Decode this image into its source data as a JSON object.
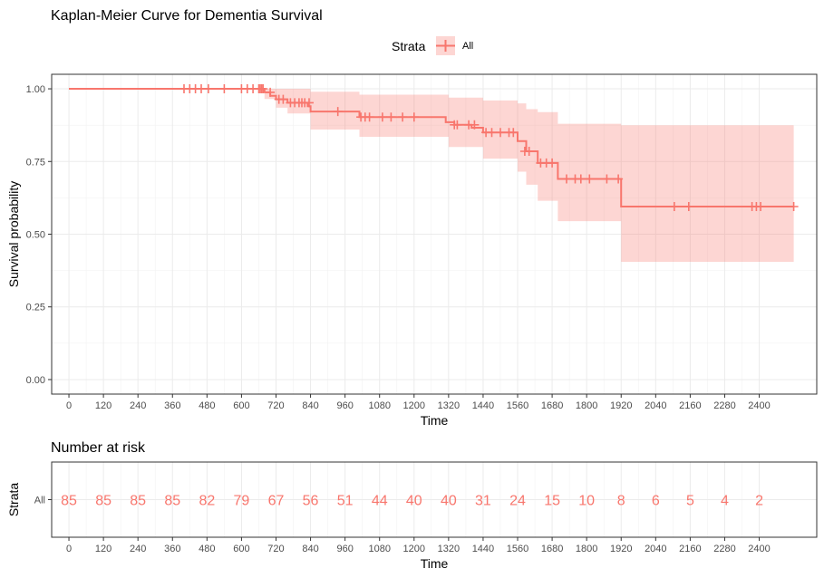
{
  "chart_data": [
    {
      "type": "line",
      "title": "Kaplan-Meier Curve for Dementia Survival",
      "xlabel": "Time",
      "ylabel": "Survival probability",
      "xlim": [
        -60,
        2600
      ],
      "ylim": [
        -0.05,
        1.05
      ],
      "x_ticks": [
        "0",
        "120",
        "240",
        "360",
        "480",
        "600",
        "720",
        "840",
        "960",
        "1080",
        "1200",
        "1320",
        "1440",
        "1560",
        "1680",
        "1800",
        "1920",
        "2040",
        "2160",
        "2280",
        "2400"
      ],
      "y_ticks": [
        "0.00",
        "0.25",
        "0.50",
        "0.75",
        "1.00"
      ],
      "grid": true,
      "legend": {
        "title": "Strata",
        "position": "top",
        "entries": [
          "All"
        ]
      },
      "color": "#F8766D",
      "band_color": "#F8766D",
      "series": [
        {
          "name": "All",
          "steps": [
            [
              0,
              1.0
            ],
            [
              680,
              0.988
            ],
            [
              700,
              0.976
            ],
            [
              720,
              0.964
            ],
            [
              760,
              0.952
            ],
            [
              830,
              0.94
            ],
            [
              840,
              0.922
            ],
            [
              1010,
              0.903
            ],
            [
              1310,
              0.885
            ],
            [
              1340,
              0.876
            ],
            [
              1400,
              0.866
            ],
            [
              1440,
              0.85
            ],
            [
              1520,
              0.85
            ],
            [
              1560,
              0.82
            ],
            [
              1590,
              0.785
            ],
            [
              1630,
              0.745
            ],
            [
              1700,
              0.69
            ],
            [
              1920,
              0.595
            ],
            [
              2520,
              0.595
            ]
          ],
          "ci": [
            [
              0,
              1.0,
              1.0
            ],
            [
              660,
              1.0,
              1.0
            ],
            [
              680,
              0.965,
              1.0
            ],
            [
              720,
              0.935,
              1.0
            ],
            [
              760,
              0.915,
              1.0
            ],
            [
              840,
              0.86,
              0.99
            ],
            [
              1010,
              0.835,
              0.98
            ],
            [
              1140,
              0.835,
              0.98
            ],
            [
              1320,
              0.8,
              0.97
            ],
            [
              1440,
              0.76,
              0.96
            ],
            [
              1560,
              0.715,
              0.95
            ],
            [
              1590,
              0.67,
              0.93
            ],
            [
              1630,
              0.615,
              0.92
            ],
            [
              1700,
              0.545,
              0.88
            ],
            [
              1920,
              0.405,
              0.875
            ],
            [
              2520,
              0.405,
              0.875
            ]
          ],
          "censored": [
            [
              400,
              1.0
            ],
            [
              420,
              1.0
            ],
            [
              440,
              1.0
            ],
            [
              460,
              1.0
            ],
            [
              485,
              1.0
            ],
            [
              540,
              1.0
            ],
            [
              600,
              1.0
            ],
            [
              620,
              1.0
            ],
            [
              640,
              1.0
            ],
            [
              660,
              1.0
            ],
            [
              665,
              1.0
            ],
            [
              670,
              1.0
            ],
            [
              675,
              1.0
            ],
            [
              700,
              0.988
            ],
            [
              730,
              0.964
            ],
            [
              745,
              0.964
            ],
            [
              770,
              0.952
            ],
            [
              785,
              0.952
            ],
            [
              800,
              0.952
            ],
            [
              810,
              0.952
            ],
            [
              820,
              0.952
            ],
            [
              835,
              0.952
            ],
            [
              935,
              0.922
            ],
            [
              1015,
              0.903
            ],
            [
              1030,
              0.903
            ],
            [
              1045,
              0.903
            ],
            [
              1090,
              0.903
            ],
            [
              1120,
              0.903
            ],
            [
              1160,
              0.903
            ],
            [
              1200,
              0.903
            ],
            [
              1340,
              0.876
            ],
            [
              1350,
              0.876
            ],
            [
              1390,
              0.876
            ],
            [
              1410,
              0.876
            ],
            [
              1450,
              0.85
            ],
            [
              1470,
              0.85
            ],
            [
              1500,
              0.85
            ],
            [
              1530,
              0.85
            ],
            [
              1545,
              0.85
            ],
            [
              1585,
              0.785
            ],
            [
              1600,
              0.785
            ],
            [
              1640,
              0.745
            ],
            [
              1660,
              0.745
            ],
            [
              1680,
              0.745
            ],
            [
              1730,
              0.69
            ],
            [
              1760,
              0.69
            ],
            [
              1780,
              0.69
            ],
            [
              1810,
              0.69
            ],
            [
              1870,
              0.69
            ],
            [
              1910,
              0.69
            ],
            [
              2105,
              0.595
            ],
            [
              2155,
              0.595
            ],
            [
              2375,
              0.595
            ],
            [
              2390,
              0.595
            ],
            [
              2405,
              0.595
            ],
            [
              2520,
              0.595
            ]
          ]
        }
      ]
    },
    {
      "type": "table",
      "title": "Number at risk",
      "xlabel": "Time",
      "ylabel": "Strata",
      "row_label": "All",
      "x": [
        0,
        120,
        240,
        360,
        480,
        600,
        720,
        840,
        960,
        1080,
        1200,
        1320,
        1440,
        1560,
        1680,
        1800,
        1920,
        2040,
        2160,
        2280,
        2400
      ],
      "values": [
        85,
        85,
        85,
        85,
        82,
        79,
        67,
        56,
        51,
        44,
        40,
        40,
        31,
        24,
        15,
        10,
        8,
        6,
        5,
        4,
        2
      ],
      "x_ticks": [
        "0",
        "120",
        "240",
        "360",
        "480",
        "600",
        "720",
        "840",
        "960",
        "1080",
        "1200",
        "1320",
        "1440",
        "1560",
        "1680",
        "1800",
        "1920",
        "2040",
        "2160",
        "2280",
        "2400"
      ],
      "color": "#F8766D"
    }
  ]
}
